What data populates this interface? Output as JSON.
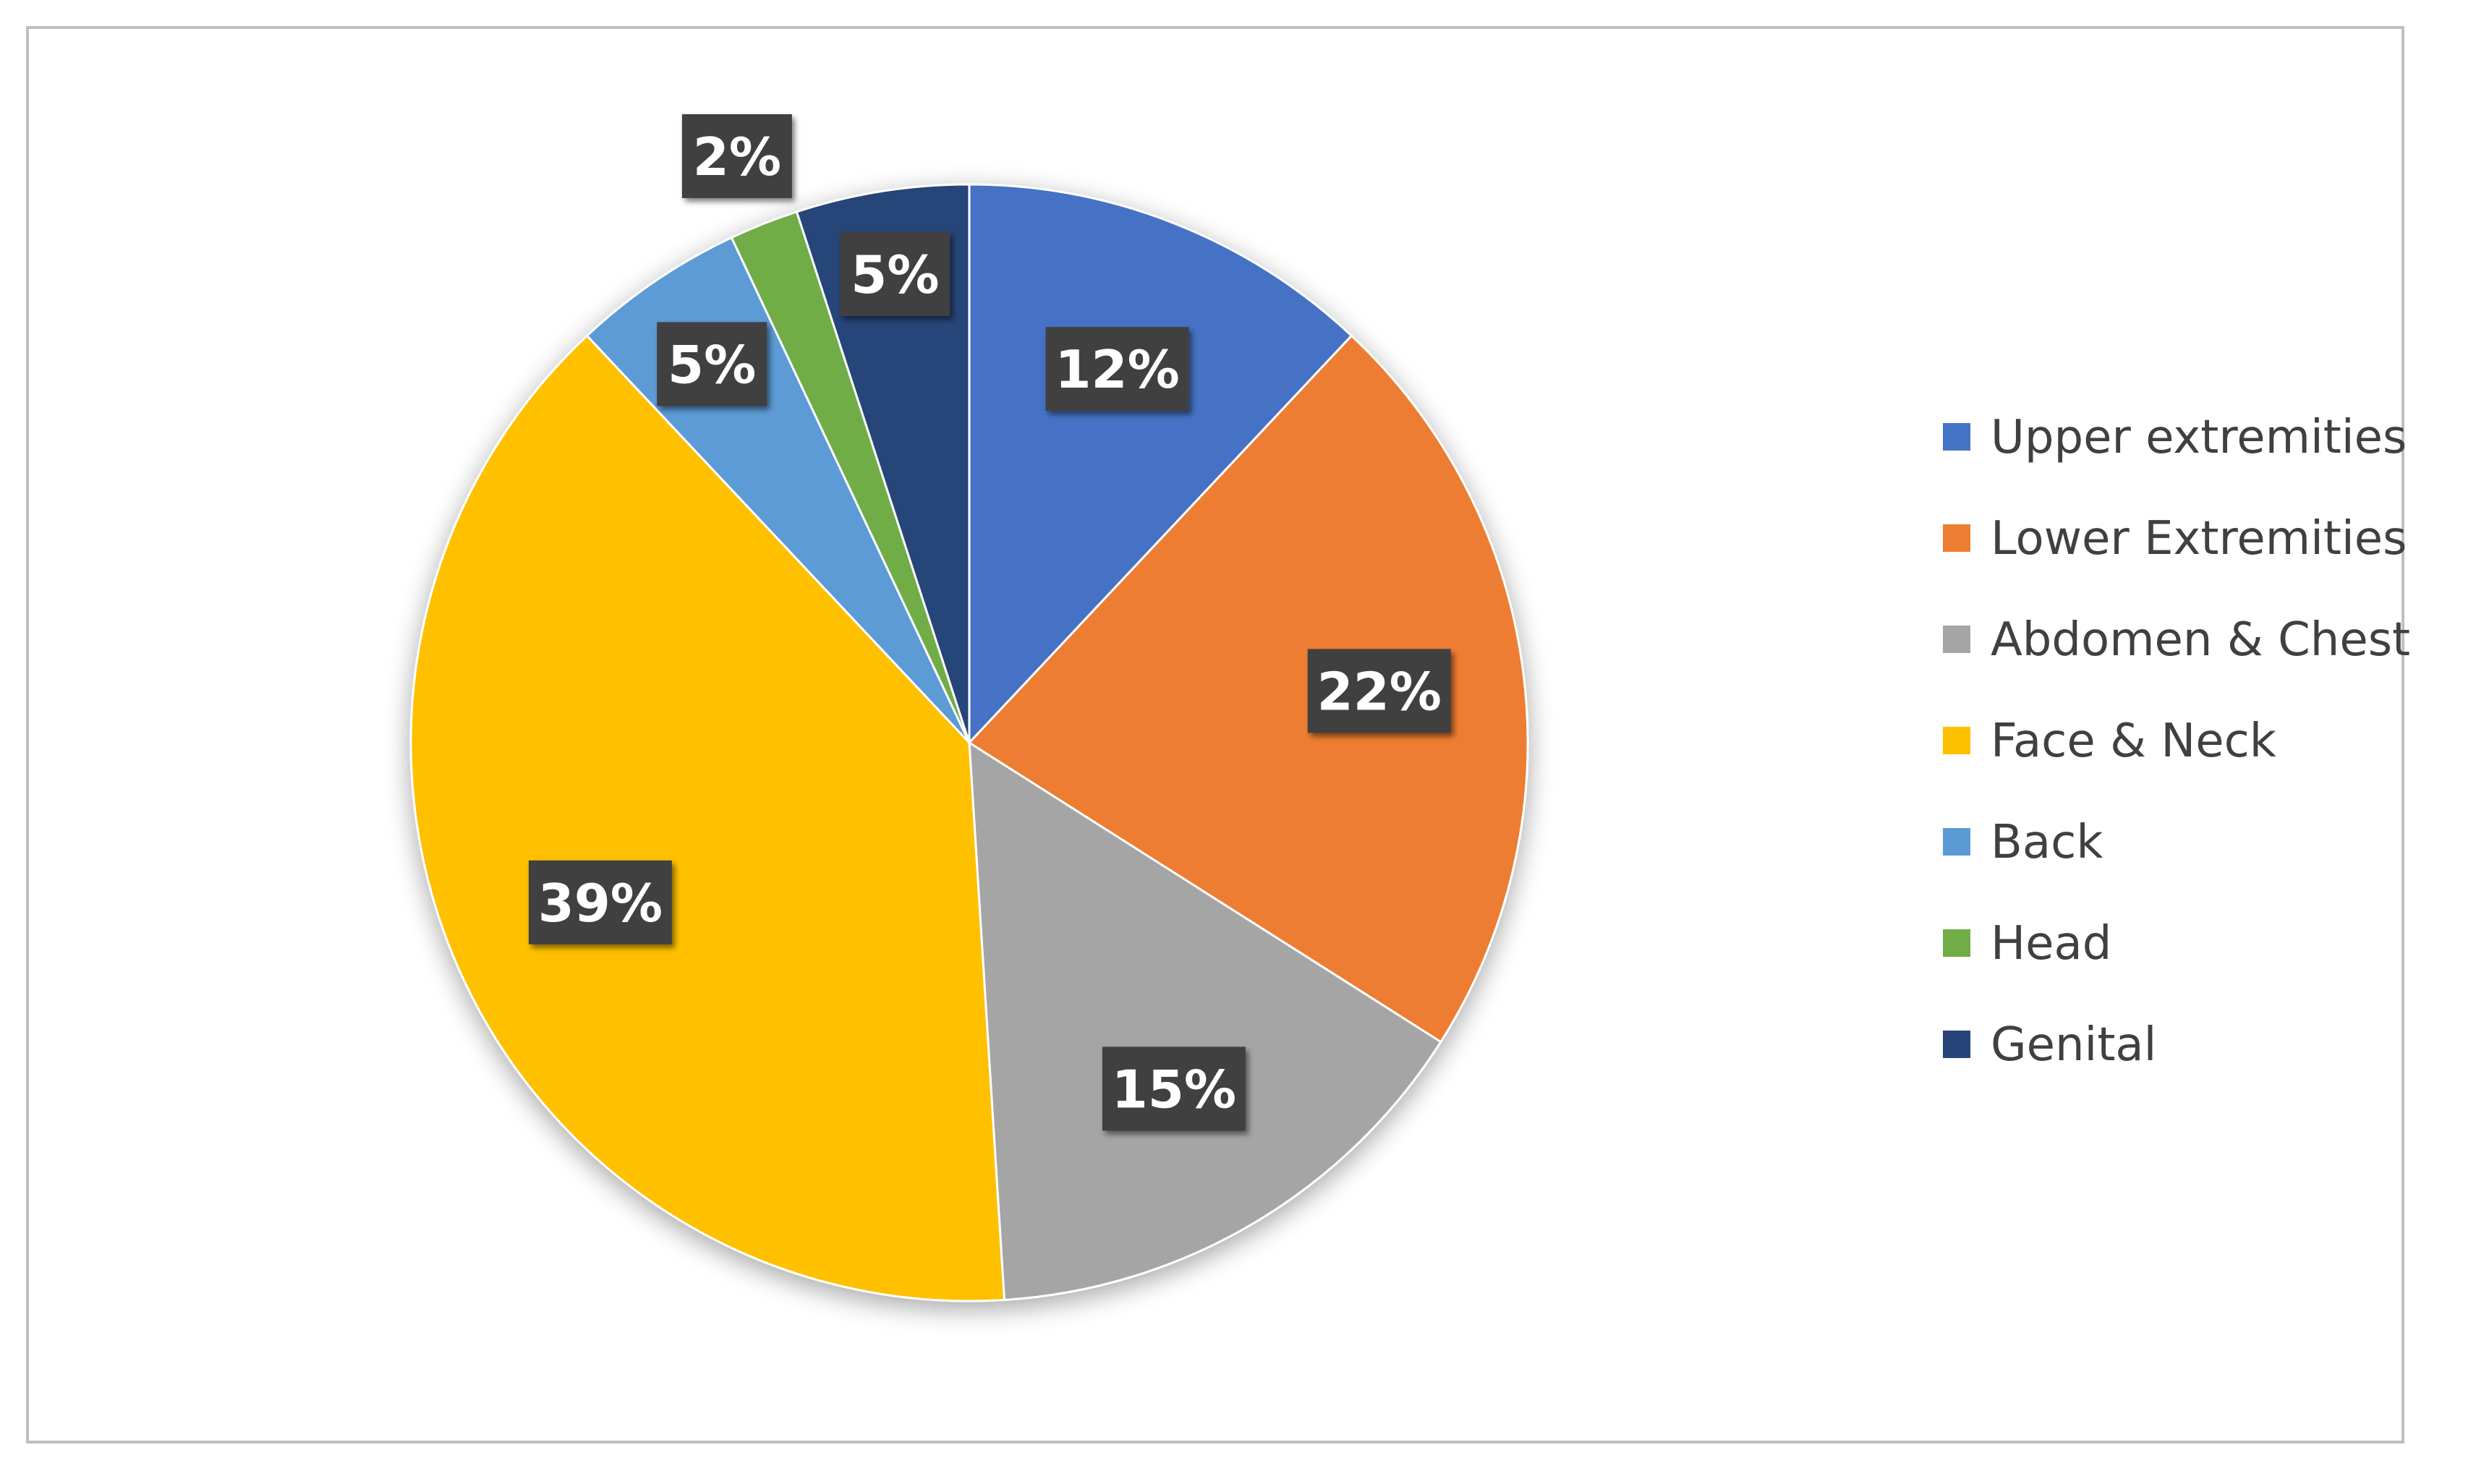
{
  "chart_data": {
    "type": "pie",
    "title": "",
    "categories": [
      "Upper extremities",
      "Lower Extremities",
      "Abdomen & Chest",
      "Face & Neck",
      "Back",
      "Head",
      "Genital"
    ],
    "values": [
      12,
      22,
      15,
      39,
      5,
      2,
      5
    ],
    "data_labels": [
      "12%",
      "22%",
      "15%",
      "39%",
      "5%",
      "2%",
      "5%"
    ],
    "colors": [
      "#4472C4",
      "#ED7D31",
      "#A5A5A5",
      "#FFC000",
      "#5B9BD5",
      "#70AD47",
      "#264478"
    ],
    "start_angle_deg": 0,
    "direction": "clockwise",
    "legend": {
      "placement": "right",
      "entries": [
        "Upper extremities",
        "Lower Extremities",
        "Abdomen & Chest",
        "Face & Neck",
        "Back",
        "Head",
        "Genital"
      ]
    },
    "label_style": {
      "background": "#404040",
      "text_color": "#FFFFFF"
    }
  }
}
